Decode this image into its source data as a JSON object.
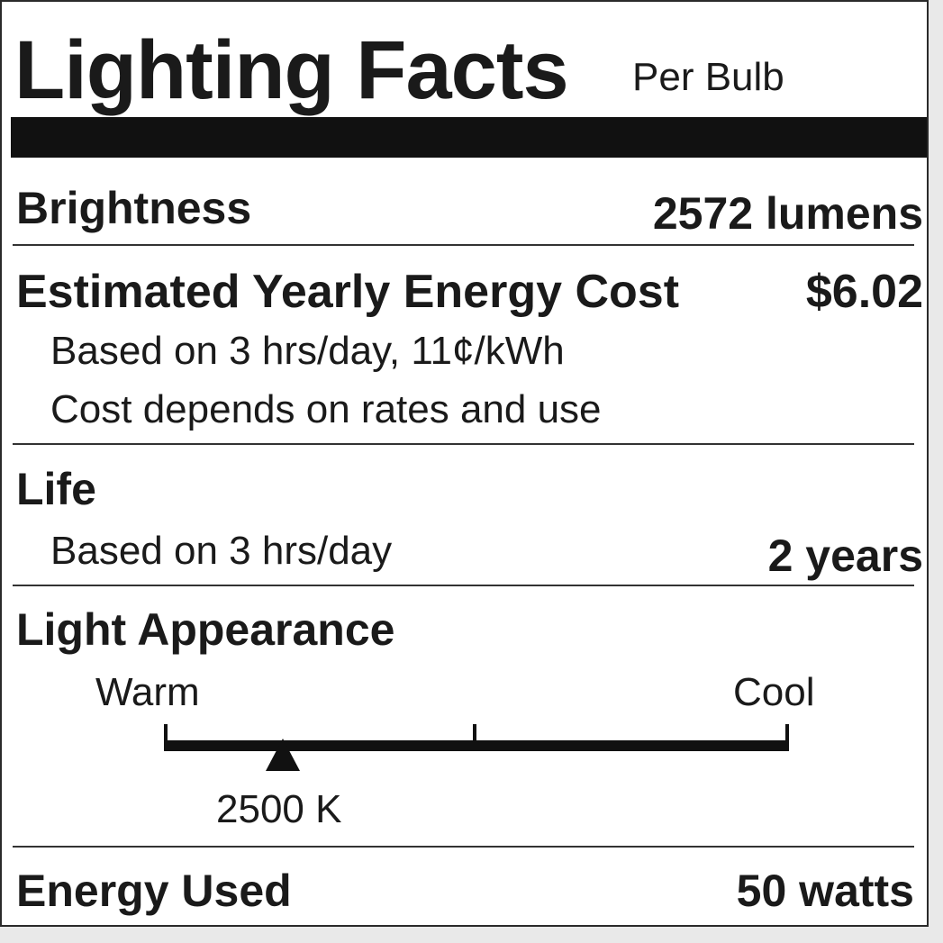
{
  "header": {
    "title": "Lighting Facts",
    "subtitle": "Per Bulb"
  },
  "brightness": {
    "label": "Brightness",
    "value": "2572 lumens"
  },
  "energy_cost": {
    "label": "Estimated Yearly Energy Cost",
    "value": "$6.02",
    "note1": "Based on 3 hrs/day, 11¢/kWh",
    "note2": "Cost depends on rates and use"
  },
  "life": {
    "label": "Life",
    "note": "Based on 3 hrs/day",
    "value": "2 years"
  },
  "light_appearance": {
    "label": "Light Appearance",
    "warm_label": "Warm",
    "cool_label": "Cool",
    "marker_label": "2500 K",
    "marker_fraction": 0.19
  },
  "energy_used": {
    "label": "Energy Used",
    "value": "50 watts"
  },
  "colors": {
    "ink": "#1a1a1a",
    "background": "#ffffff"
  }
}
